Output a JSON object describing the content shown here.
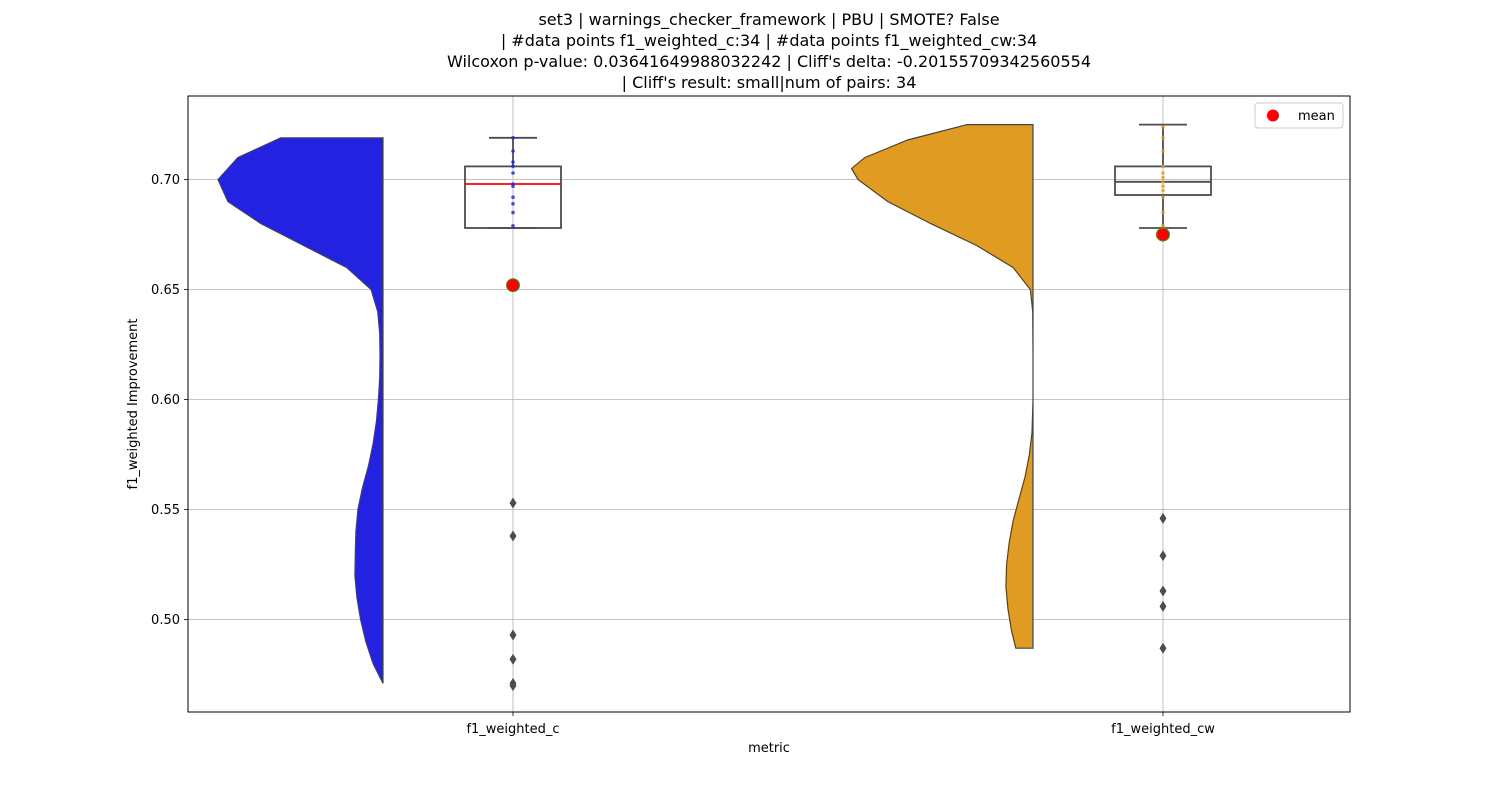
{
  "chart_data": {
    "type": "violin",
    "title_lines": [
      "set3 | warnings_checker_framework | PBU | SMOTE? False",
      "| #data points f1_weighted_c:34 | #data points f1_weighted_cw:34",
      "Wilcoxon p-value: 0.03641649988032242 | Cliff's delta: -0.20155709342560554",
      "| Cliff's result: small|num of pairs: 34"
    ],
    "xlabel": "metric",
    "ylabel": "f1_weighted Improvement",
    "categories": [
      "f1_weighted_c",
      "f1_weighted_cw"
    ],
    "ylim": [
      0.458,
      0.738
    ],
    "yticks": [
      0.5,
      0.55,
      0.6,
      0.65,
      0.7
    ],
    "ytick_labels": [
      "0.50",
      "0.55",
      "0.60",
      "0.65",
      "0.70"
    ],
    "grid": true,
    "legend": {
      "entries": [
        "mean"
      ],
      "placement": "top-right"
    },
    "series": [
      {
        "category": "f1_weighted_c",
        "color": "#2222e0",
        "whisker_low": 0.678,
        "q1": 0.678,
        "median": 0.698,
        "q3": 0.706,
        "whisker_high": 0.719,
        "mean": 0.652,
        "violin_min": 0.471,
        "violin_max": 0.719,
        "density": [
          [
            0.471,
            0.0
          ],
          [
            0.48,
            0.3
          ],
          [
            0.49,
            0.52
          ],
          [
            0.5,
            0.68
          ],
          [
            0.51,
            0.79
          ],
          [
            0.52,
            0.85
          ],
          [
            0.53,
            0.84
          ],
          [
            0.54,
            0.82
          ],
          [
            0.55,
            0.76
          ],
          [
            0.56,
            0.62
          ],
          [
            0.57,
            0.44
          ],
          [
            0.58,
            0.3
          ],
          [
            0.59,
            0.2
          ],
          [
            0.6,
            0.14
          ],
          [
            0.61,
            0.1
          ],
          [
            0.62,
            0.09
          ],
          [
            0.63,
            0.1
          ],
          [
            0.64,
            0.16
          ],
          [
            0.65,
            0.36
          ],
          [
            0.66,
            1.1
          ],
          [
            0.67,
            2.4
          ],
          [
            0.68,
            3.7
          ],
          [
            0.69,
            4.7
          ],
          [
            0.7,
            5.0
          ],
          [
            0.71,
            4.4
          ],
          [
            0.719,
            3.1
          ]
        ],
        "points": [
          0.679,
          0.685,
          0.689,
          0.692,
          0.697,
          0.698,
          0.703,
          0.706,
          0.708,
          0.713,
          0.719
        ],
        "outliers": [
          0.553,
          0.538,
          0.493,
          0.482,
          0.471,
          0.47
        ]
      },
      {
        "category": "f1_weighted_cw",
        "color": "#e09c22",
        "whisker_low": 0.678,
        "q1": 0.693,
        "median": 0.699,
        "q3": 0.706,
        "whisker_high": 0.725,
        "mean": 0.675,
        "violin_min": 0.487,
        "violin_max": 0.725,
        "density": [
          [
            0.487,
            0.52
          ],
          [
            0.495,
            0.65
          ],
          [
            0.505,
            0.76
          ],
          [
            0.515,
            0.82
          ],
          [
            0.525,
            0.8
          ],
          [
            0.535,
            0.72
          ],
          [
            0.545,
            0.6
          ],
          [
            0.555,
            0.42
          ],
          [
            0.565,
            0.24
          ],
          [
            0.575,
            0.11
          ],
          [
            0.585,
            0.03
          ],
          [
            0.6,
            0.0
          ],
          [
            0.62,
            0.0
          ],
          [
            0.64,
            0.01
          ],
          [
            0.65,
            0.08
          ],
          [
            0.66,
            0.6
          ],
          [
            0.67,
            1.7
          ],
          [
            0.68,
            3.1
          ],
          [
            0.69,
            4.4
          ],
          [
            0.7,
            5.3
          ],
          [
            0.705,
            5.5
          ],
          [
            0.71,
            5.1
          ],
          [
            0.718,
            3.8
          ],
          [
            0.725,
            2.0
          ]
        ],
        "points": [
          0.679,
          0.685,
          0.692,
          0.695,
          0.697,
          0.699,
          0.701,
          0.703,
          0.706,
          0.713,
          0.719,
          0.724
        ],
        "outliers": [
          0.546,
          0.529,
          0.513,
          0.506,
          0.487
        ]
      }
    ]
  }
}
